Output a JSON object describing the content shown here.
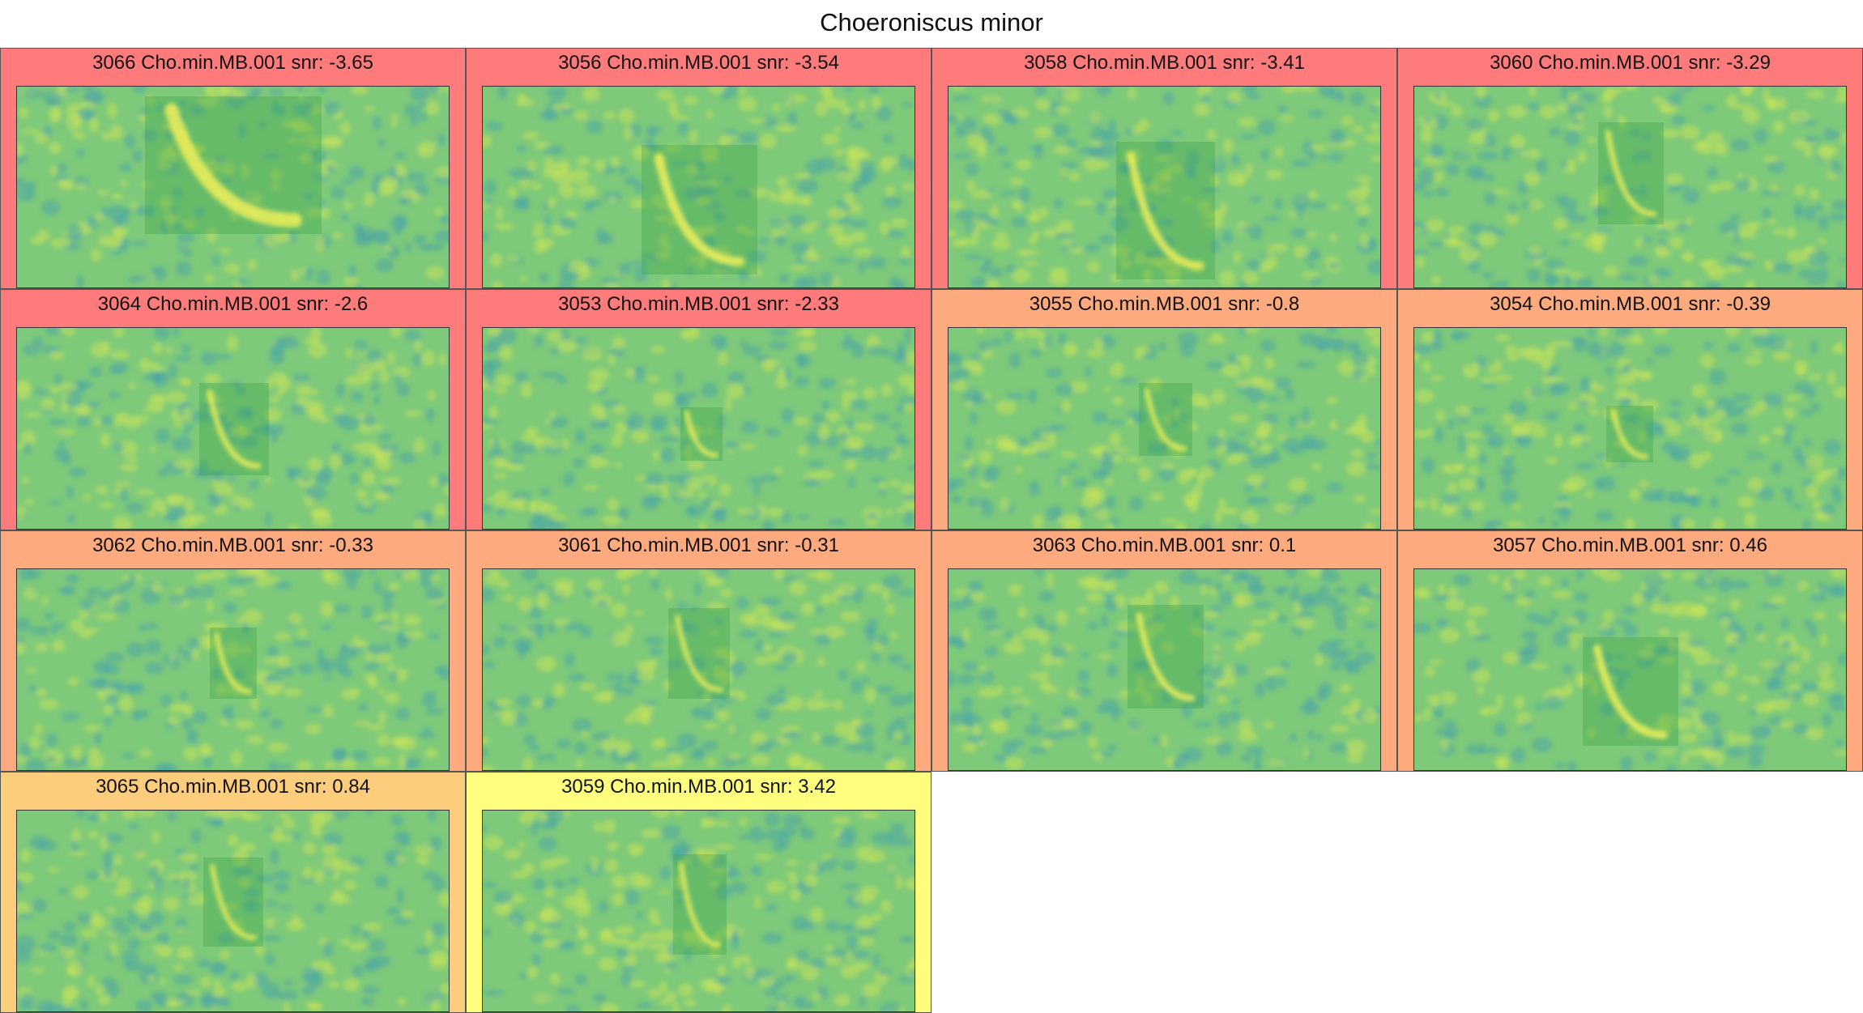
{
  "title": "Choeroniscus minor",
  "colors": {
    "red": "#fd7b7b",
    "orange": "#fdab7e",
    "light_orange": "#fdcd7e",
    "yellow": "#fdfd7e",
    "spec_base": "#7ec97a",
    "spec_blue": "#4aa6a6",
    "spec_yellow": "#c9e35a",
    "call_highlight": "#f0f05a"
  },
  "panels": [
    {
      "label": "3066 Cho.min.MB.001 snr: -3.65",
      "snr": -3.65,
      "color_key": "red"
    },
    {
      "label": "3056 Cho.min.MB.001 snr: -3.54",
      "snr": -3.54,
      "color_key": "red"
    },
    {
      "label": "3058 Cho.min.MB.001 snr: -3.41",
      "snr": -3.41,
      "color_key": "red"
    },
    {
      "label": "3060 Cho.min.MB.001 snr: -3.29",
      "snr": -3.29,
      "color_key": "red"
    },
    {
      "label": "3064 Cho.min.MB.001 snr: -2.6",
      "snr": -2.6,
      "color_key": "red"
    },
    {
      "label": "3053 Cho.min.MB.001 snr: -2.33",
      "snr": -2.33,
      "color_key": "red"
    },
    {
      "label": "3055 Cho.min.MB.001 snr: -0.8",
      "snr": -0.8,
      "color_key": "orange"
    },
    {
      "label": "3054 Cho.min.MB.001 snr: -0.39",
      "snr": -0.39,
      "color_key": "orange"
    },
    {
      "label": "3062 Cho.min.MB.001 snr: -0.33",
      "snr": -0.33,
      "color_key": "orange"
    },
    {
      "label": "3061 Cho.min.MB.001 snr: -0.31",
      "snr": -0.31,
      "color_key": "orange"
    },
    {
      "label": "3063 Cho.min.MB.001 snr: 0.1",
      "snr": 0.1,
      "color_key": "orange"
    },
    {
      "label": "3057 Cho.min.MB.001 snr: 0.46",
      "snr": 0.46,
      "color_key": "orange"
    },
    {
      "label": "3065 Cho.min.MB.001 snr: 0.84",
      "snr": 0.84,
      "color_key": "light_orange"
    },
    {
      "label": "3059 Cho.min.MB.001 snr: 3.42",
      "snr": 3.42,
      "color_key": "yellow"
    }
  ]
}
